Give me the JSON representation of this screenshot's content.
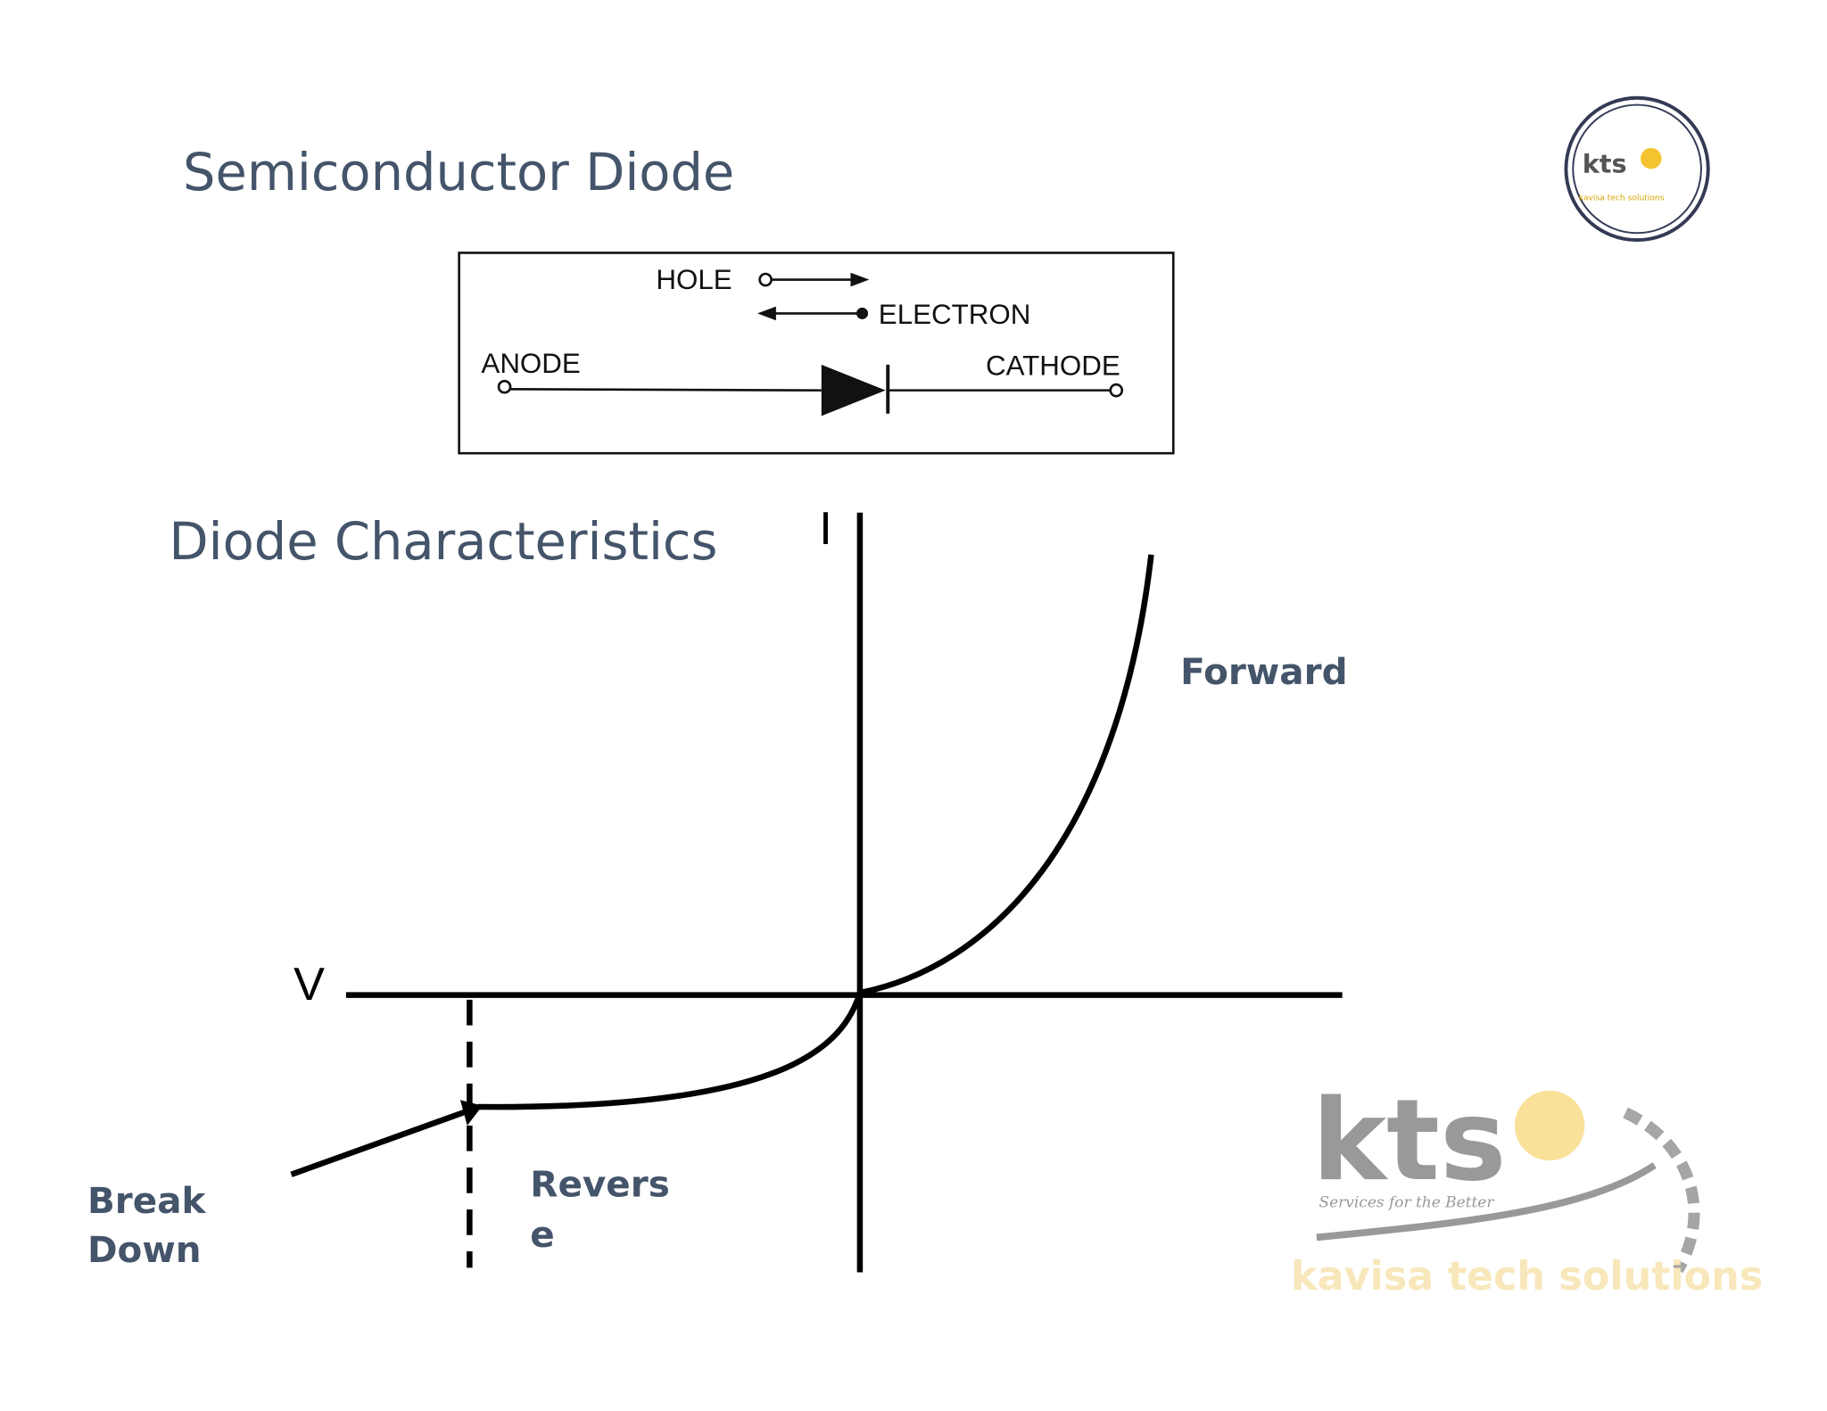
{
  "title": "Semiconductor Diode",
  "diode_symbol": {
    "hole": "HOLE",
    "electron": "ELECTRON",
    "anode": "ANODE",
    "cathode": "CATHODE"
  },
  "characteristics": {
    "title": "Diode Characteristics",
    "current_axis": "I",
    "voltage_axis": "V",
    "forward_label": "Forward",
    "reverse_label": [
      "Revers",
      "e"
    ],
    "breakdown_label": [
      "Break",
      "Down"
    ]
  },
  "logo": {
    "mark": "kts",
    "tagline": "Services for the Better",
    "company": "kavisa tech solutions"
  }
}
